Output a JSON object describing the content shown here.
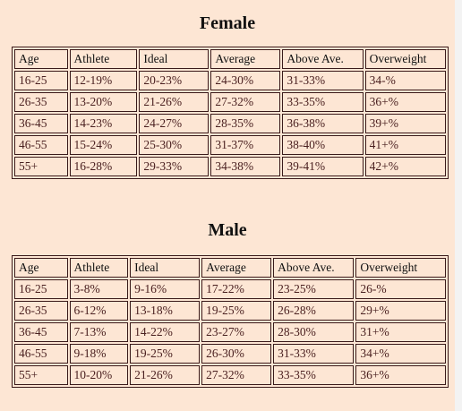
{
  "female": {
    "title": "Female",
    "headers": [
      "Age",
      "Athlete",
      "Ideal",
      "Average",
      "Above Ave.",
      "Overweight"
    ],
    "rows": [
      [
        "16-25",
        "12-19%",
        "20-23%",
        "24-30%",
        "31-33%",
        "34-%"
      ],
      [
        "26-35",
        "13-20%",
        "21-26%",
        "27-32%",
        "33-35%",
        "36+%"
      ],
      [
        "36-45",
        "14-23%",
        "24-27%",
        "28-35%",
        "36-38%",
        "39+%"
      ],
      [
        "46-55",
        "15-24%",
        "25-30%",
        "31-37%",
        "38-40%",
        "41+%"
      ],
      [
        "55+",
        "16-28%",
        "29-33%",
        "34-38%",
        "39-41%",
        "42+%"
      ]
    ]
  },
  "male": {
    "title": "Male",
    "headers": [
      "Age",
      "Athlete",
      "Ideal",
      "Average",
      "Above Ave.",
      "Overweight"
    ],
    "rows": [
      [
        "16-25",
        "3-8%",
        "9-16%",
        "17-22%",
        "23-25%",
        "26-%"
      ],
      [
        "26-35",
        "6-12%",
        "13-18%",
        "19-25%",
        "26-28%",
        "29+%"
      ],
      [
        "36-45",
        "7-13%",
        "14-22%",
        "23-27%",
        "28-30%",
        "31+%"
      ],
      [
        "46-55",
        "9-18%",
        "19-25%",
        "26-30%",
        "31-33%",
        "34+%"
      ],
      [
        "55+",
        "10-20%",
        "21-26%",
        "27-32%",
        "33-35%",
        "36+%"
      ]
    ]
  }
}
